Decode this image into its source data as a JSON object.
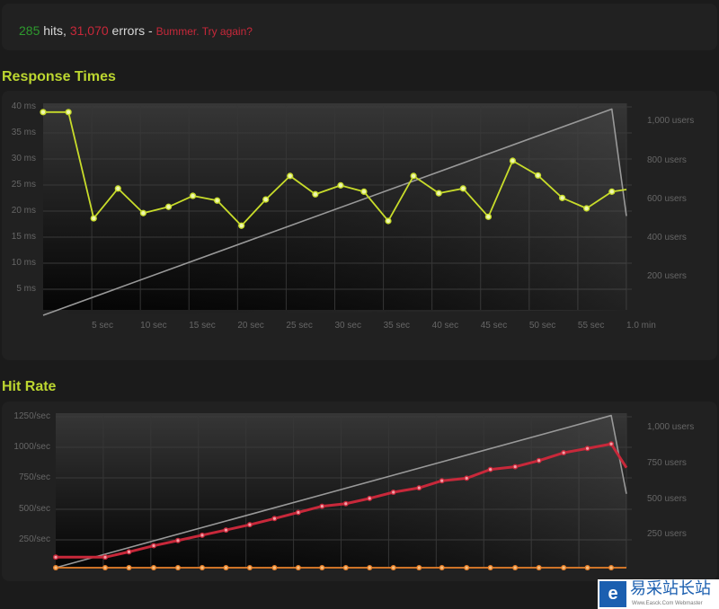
{
  "summary": {
    "hits": "285",
    "hits_label": "hits,",
    "errors": "31,070",
    "errors_label": "errors -",
    "message": "Bummer. Try again?"
  },
  "colors": {
    "accent": "#bcd630",
    "hits": "#2e9a2e",
    "errors": "#c8283a",
    "timeouts": "#e8802a",
    "users": "#999999"
  },
  "watermark": {
    "logo_icon": "e-logo-icon",
    "text": "易采站长站",
    "subtext": "Www.Easck.Com Webmaster"
  },
  "chart_data": [
    {
      "type": "line",
      "title": "Response Times",
      "x_ticks": [
        "5 sec",
        "10 sec",
        "15 sec",
        "20 sec",
        "25 sec",
        "30 sec",
        "35 sec",
        "40 sec",
        "45 sec",
        "50 sec",
        "55 sec",
        "1.0 min"
      ],
      "y_ticks": [
        "40 ms",
        "35 ms",
        "30 ms",
        "25 ms",
        "20 ms",
        "15 ms",
        "10 ms",
        "5 ms"
      ],
      "y2_ticks": [
        "1,000 users",
        "800 users",
        "600 users",
        "400 users",
        "200 users"
      ],
      "xlim": [
        0,
        60
      ],
      "ylim": [
        0,
        40
      ],
      "y2lim": [
        0,
        1050
      ],
      "grid": true,
      "series": [
        {
          "color": "#c8dc2a",
          "axis": "left",
          "markers": true,
          "x": [
            0,
            2.6,
            5.2,
            7.7,
            10.3,
            12.9,
            15.4,
            17.9,
            20.4,
            22.9,
            25.4,
            28,
            30.6,
            33,
            35.5,
            38.1,
            40.7,
            43.2,
            45.8,
            48.3,
            50.9,
            53.4,
            55.9,
            58.5,
            60
          ],
          "y": [
            39,
            39,
            18.7,
            24.4,
            19.7,
            20.9,
            23,
            22.1,
            17.3,
            22.3,
            26.8,
            23.3,
            25,
            23.8,
            18.2,
            26.8,
            23.5,
            24.4,
            19,
            29.7,
            26.9,
            22.6,
            20.6,
            23.8,
            24.2
          ]
        },
        {
          "color": "#999999",
          "axis": "right",
          "markers": false,
          "x": [
            0,
            58.5,
            60
          ],
          "y": [
            0,
            1060,
            510
          ]
        }
      ]
    },
    {
      "type": "line",
      "title": "Hit Rate",
      "x_ticks": [],
      "y_ticks": [
        "1250/sec",
        "1000/sec",
        "750/sec",
        "500/sec",
        "250/sec"
      ],
      "y2_ticks": [
        "1,000 users",
        "750 users",
        "500 users",
        "250 users"
      ],
      "xlim": [
        0,
        60
      ],
      "ylim": [
        0,
        1250
      ],
      "y2lim": [
        0,
        1070
      ],
      "grid": true,
      "series": [
        {
          "color": "#c8283a",
          "axis": "left",
          "markers": true,
          "x": [
            0,
            5.2,
            7.7,
            10.3,
            12.85,
            15.4,
            17.9,
            20.4,
            23,
            25.5,
            28,
            30.5,
            33,
            35.5,
            38.2,
            40.6,
            43.2,
            45.7,
            48.3,
            50.8,
            53.4,
            55.9,
            58.4,
            60
          ],
          "y": [
            87,
            87,
            131,
            182,
            225,
            269,
            312,
            356,
            407,
            458,
            509,
            530,
            574,
            625,
            661,
            720,
            741,
            814,
            836,
            887,
            952,
            988,
            1025,
            828
          ]
        },
        {
          "color": "#e8802a",
          "axis": "left",
          "markers": true,
          "x": [
            0,
            5.2,
            7.7,
            10.3,
            12.85,
            15.4,
            17.9,
            20.4,
            23,
            25.5,
            28,
            30.5,
            33,
            35.5,
            38.2,
            40.6,
            43.2,
            45.7,
            48.3,
            50.8,
            53.4,
            55.9,
            58.4,
            60
          ],
          "y": [
            0,
            0,
            0,
            0,
            0,
            0,
            0,
            0,
            0,
            0,
            0,
            0,
            0,
            0,
            0,
            0,
            0,
            0,
            0,
            0,
            0,
            0,
            0,
            0
          ]
        },
        {
          "color": "#999999",
          "axis": "right",
          "markers": false,
          "x": [
            0,
            58.4,
            60
          ],
          "y": [
            0,
            1069,
            519
          ]
        }
      ]
    }
  ]
}
